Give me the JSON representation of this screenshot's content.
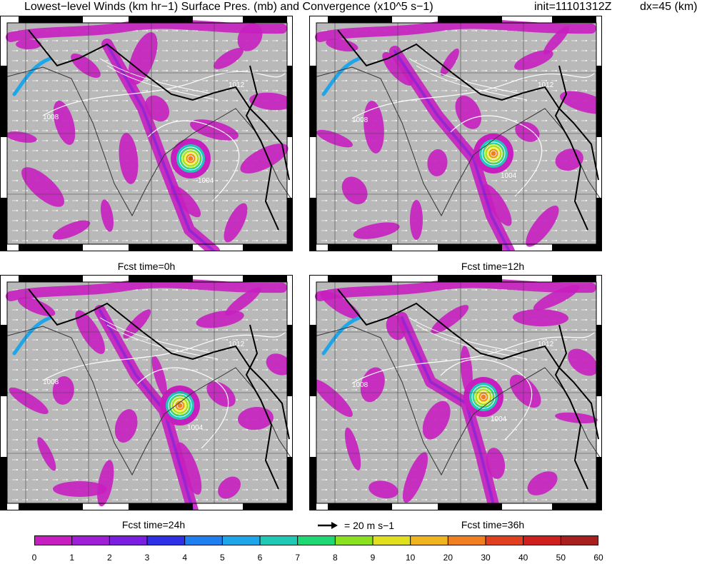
{
  "title": {
    "main": "Lowest−level Winds (km hr−1) Surface Pres. (mb) and Convergence (x10^5 s−1)",
    "init": "init=11101312Z",
    "dx": "dx=45 (km)"
  },
  "panels": [
    {
      "caption": "Fcst time=0h",
      "contour_labels": [
        "1004",
        "1008",
        "1012"
      ]
    },
    {
      "caption": "Fcst time=12h",
      "contour_labels": [
        "1004",
        "1008",
        "1012"
      ]
    },
    {
      "caption": "Fcst time=24h",
      "contour_labels": [
        "1004",
        "1008",
        "1012"
      ]
    },
    {
      "caption": "Fcst time=36h",
      "contour_labels": [
        "1004",
        "1008",
        "1012"
      ]
    }
  ],
  "vector_key": {
    "label": "= 20 m s−1",
    "arrow_icon": "arrow-right-icon"
  },
  "colorbar": {
    "labels": [
      "0",
      "1",
      "2",
      "3",
      "4",
      "5",
      "6",
      "7",
      "8",
      "9",
      "10",
      "20",
      "30",
      "40",
      "50",
      "60"
    ],
    "colors": [
      "#c71fbf",
      "#9e1fd6",
      "#7a1fe0",
      "#2f2fe8",
      "#1f7fef",
      "#1fa6e8",
      "#1fc9b6",
      "#1fd874",
      "#8be01f",
      "#e0e01f",
      "#f0b41f",
      "#f07f1f",
      "#e0401f",
      "#d01f1f",
      "#a81f1f"
    ]
  },
  "colors": {
    "ground": "#b9b9b9",
    "convergence_low": "#c71fbf",
    "cyclone_core": "#f07f1f",
    "frame": "#000000"
  }
}
